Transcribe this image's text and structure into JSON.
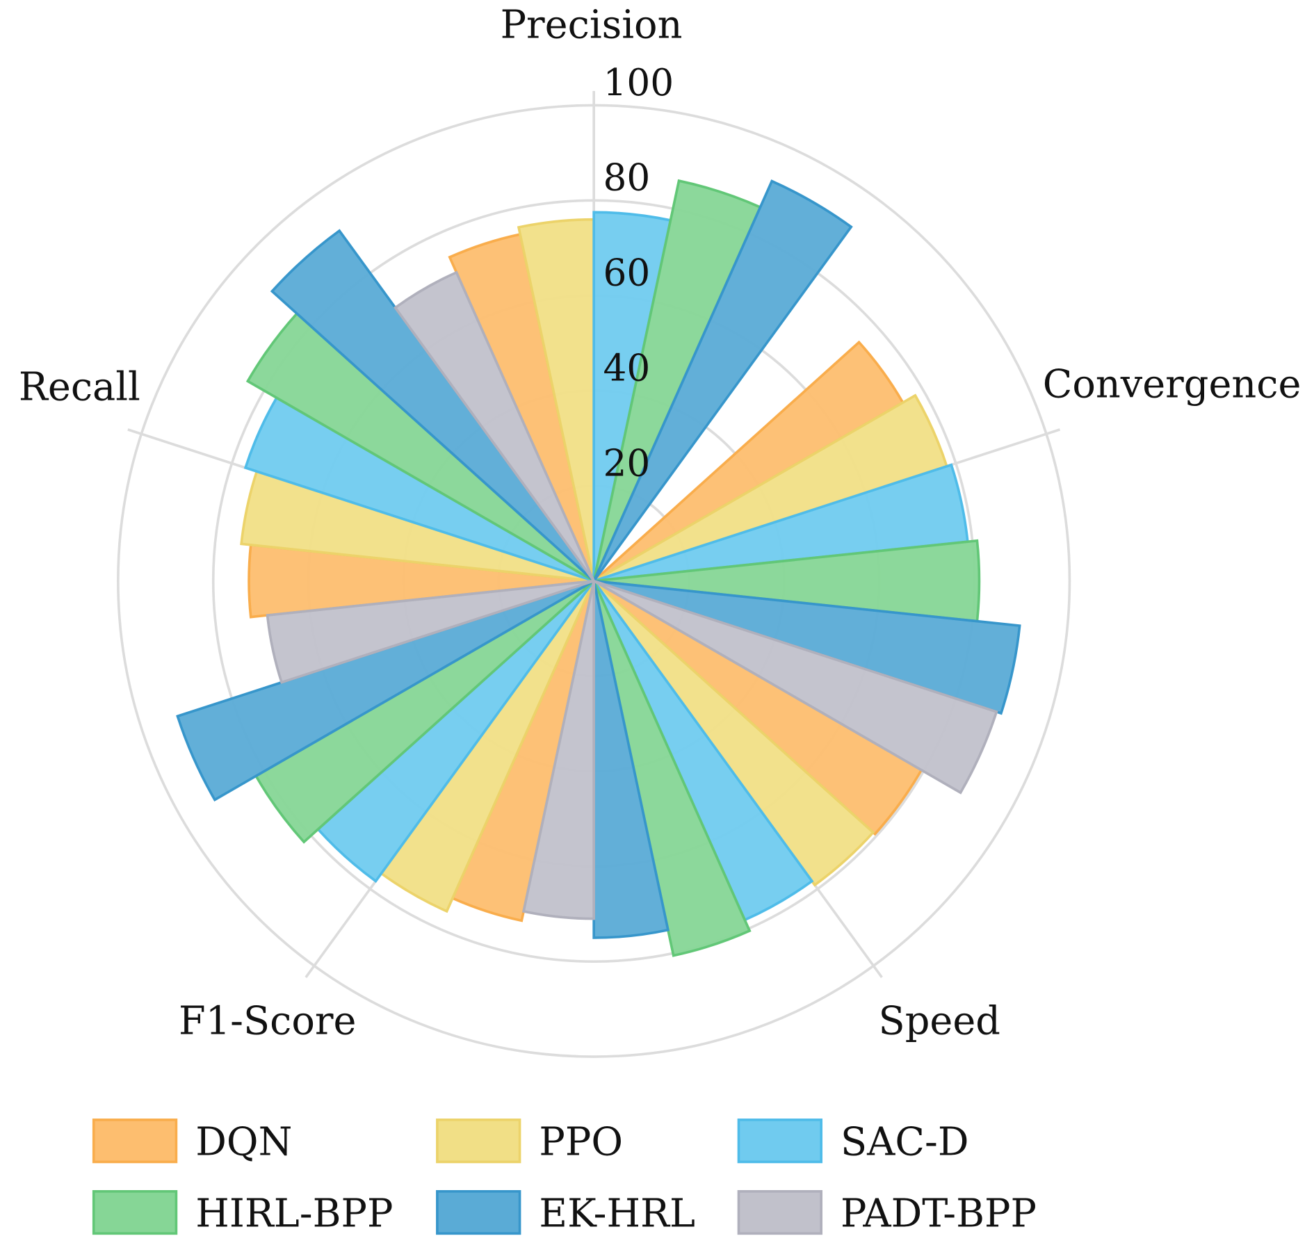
{
  "chart_data": {
    "type": "polar-bar",
    "title": "",
    "categories": [
      "Precision",
      "Convergence",
      "Speed",
      "F1-Score",
      "Recall"
    ],
    "radial_ticks": [
      "20",
      "40",
      "60",
      "80",
      "100"
    ],
    "radial_range": [
      0,
      100
    ],
    "grid": true,
    "legend_position": "bottom",
    "series": [
      {
        "name": "DQN",
        "color": "#fdbe6f",
        "edge": "#f9ad4c",
        "values": [
          74.5,
          75,
          79.5,
          73,
          72.5
        ]
      },
      {
        "name": "PPO",
        "color": "#f1df86",
        "edge": "#ecd36a",
        "values": [
          76,
          78,
          79,
          76,
          74.5
        ]
      },
      {
        "name": "SAC-D",
        "color": "#70cbef",
        "edge": "#4fbce9",
        "values": [
          77.5,
          79,
          78,
          78,
          77
        ]
      },
      {
        "name": "HIRL-BPP",
        "color": "#86d696",
        "edge": "#62c777",
        "values": [
          86,
          81,
          80.5,
          82,
          84
        ]
      },
      {
        "name": "EK-HRL",
        "color": "#5aabd6",
        "edge": "#3796cb",
        "values": [
          92,
          90,
          75,
          92,
          91
        ]
      },
      {
        "name": "PADT-BPP",
        "color": "#c1c1cb",
        "edge": "#b0b0bc",
        "values": [
          71,
          null,
          89,
          71,
          69
        ]
      }
    ]
  }
}
